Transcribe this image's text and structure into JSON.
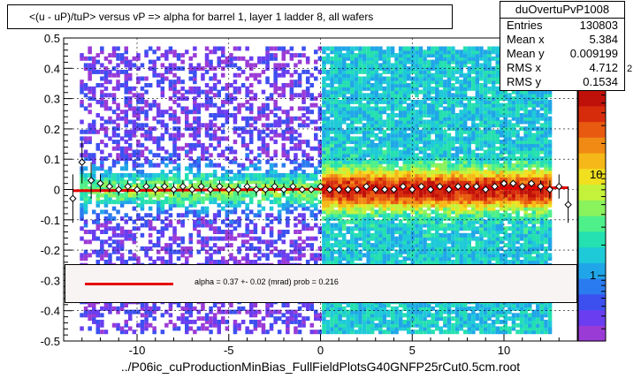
{
  "title": "<(u - uP)/tuP> versus  vP => alpha for barrel 1, layer 1 ladder 8, all wafers",
  "stats": {
    "name": "duOvertuPvP1008",
    "rows": [
      {
        "key": "Entries",
        "value": "130803"
      },
      {
        "key": "Mean x",
        "value": "5.384"
      },
      {
        "key": "Mean y",
        "value": "0.009199"
      },
      {
        "key": "RMS x",
        "value": "4.712"
      },
      {
        "key": "RMS y",
        "value": "0.1534"
      }
    ]
  },
  "fit": {
    "text": "alpha =    0.37 +-  0.02 (mrad) prob = 0.216",
    "color": "#e60000"
  },
  "file_label": "../P06ic_cuProductionMinBias_FullFieldPlotsG40GNFP25rCut0.5cm.root",
  "palette_labels": [
    "10",
    "1"
  ],
  "palette_exponent_fragment": "2",
  "chart_data": {
    "type": "heatmap",
    "xlim": [
      -14,
      14
    ],
    "ylim": [
      -0.5,
      0.5
    ],
    "x_ticks": [
      -10,
      -5,
      0,
      5,
      10
    ],
    "x_tick_labels": [
      "-10",
      "-5",
      "0",
      "5",
      "10"
    ],
    "y_ticks": [
      -0.5,
      -0.4,
      -0.3,
      -0.2,
      -0.1,
      0,
      0.1,
      0.2,
      0.3,
      0.4,
      0.5
    ],
    "y_tick_labels": [
      "-0.5",
      "-0.4",
      "-0.3",
      "-0.2",
      "-0.1",
      "0",
      "0.1",
      "0.2",
      "0.3",
      "0.4",
      "0.5"
    ],
    "grid": true,
    "z_scale": "log",
    "density_regions": [
      {
        "x": [
          -13.5,
          0
        ],
        "level": "low"
      },
      {
        "x": [
          0,
          12.5
        ],
        "level": "high"
      }
    ],
    "profile_points": {
      "x": [
        -13.5,
        -13.0,
        -12.5,
        -12.0,
        -11.5,
        -11.0,
        -10.5,
        -10.0,
        -9.5,
        -9.0,
        -8.5,
        -8.0,
        -7.5,
        -7.0,
        -6.5,
        -6.0,
        -5.5,
        -5.0,
        -4.5,
        -4.0,
        -3.5,
        -3.0,
        -2.5,
        -2.0,
        -1.5,
        -1.0,
        -0.5,
        0.0,
        0.5,
        1.0,
        1.5,
        2.0,
        2.5,
        3.0,
        3.5,
        4.0,
        4.5,
        5.0,
        5.5,
        6.0,
        6.5,
        7.0,
        7.5,
        8.0,
        8.5,
        9.0,
        9.5,
        10.0,
        10.5,
        11.0,
        11.5,
        12.0,
        12.5,
        13.0,
        13.5
      ],
      "y": [
        -0.03,
        0.09,
        0.03,
        0.02,
        0.01,
        0.0,
        0.01,
        0.0,
        0.01,
        0.0,
        0.01,
        0.0,
        0.01,
        0.0,
        0.01,
        0.0,
        0.01,
        0.0,
        0.0,
        0.01,
        0.0,
        0.0,
        0.01,
        0.0,
        0.01,
        0.0,
        0.0,
        0.01,
        0.0,
        0.0,
        0.0,
        0.0,
        0.01,
        0.0,
        0.0,
        0.0,
        0.01,
        0.0,
        0.01,
        0.0,
        0.01,
        0.0,
        0.01,
        0.01,
        0.01,
        0.0,
        0.01,
        0.02,
        0.02,
        0.01,
        0.02,
        0.01,
        0.0,
        0.01,
        -0.05
      ],
      "err": [
        0.08,
        0.07,
        0.06,
        0.03,
        0.02,
        0.02,
        0.02,
        0.02,
        0.02,
        0.02,
        0.02,
        0.02,
        0.02,
        0.02,
        0.02,
        0.02,
        0.02,
        0.02,
        0.02,
        0.02,
        0.02,
        0.02,
        0.02,
        0.02,
        0.02,
        0.01,
        0.01,
        0.01,
        0.01,
        0.01,
        0.01,
        0.01,
        0.01,
        0.01,
        0.01,
        0.01,
        0.01,
        0.01,
        0.01,
        0.01,
        0.01,
        0.01,
        0.01,
        0.01,
        0.01,
        0.01,
        0.01,
        0.01,
        0.01,
        0.01,
        0.01,
        0.02,
        0.03,
        0.04,
        0.06
      ]
    },
    "fit_line": {
      "x": [
        -13.5,
        13.5
      ],
      "y": [
        -0.004,
        0.006
      ]
    }
  }
}
